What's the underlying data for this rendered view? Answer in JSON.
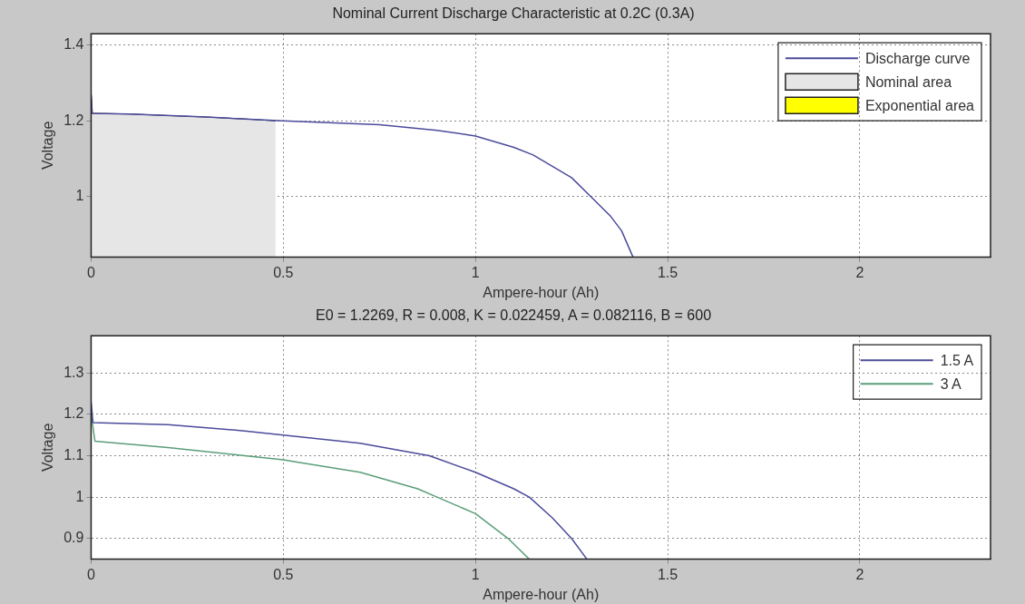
{
  "chart_data": [
    {
      "type": "line",
      "title": "Nominal Current Discharge Characteristic at 0.2C (0.3A)",
      "xlabel": "Ampere-hour (Ah)",
      "ylabel": "Voltage",
      "xlim": [
        0,
        2.34
      ],
      "ylim": [
        0.84,
        1.43
      ],
      "xticks": [
        0,
        0.5,
        1,
        1.5,
        2
      ],
      "yticks": [
        1,
        1.2,
        1.4
      ],
      "grid": true,
      "legend": "top right",
      "line_style": "solid",
      "series": [
        {
          "name": "Discharge curve",
          "color": "#4b4b9b",
          "x": [
            0,
            0.003,
            0.1,
            0.3,
            0.5,
            0.75,
            0.9,
            1.0,
            1.1,
            1.15,
            1.2,
            1.25,
            1.3,
            1.35,
            1.38,
            1.41
          ],
          "values": [
            1.27,
            1.22,
            1.218,
            1.21,
            1.2,
            1.19,
            1.175,
            1.16,
            1.13,
            1.11,
            1.08,
            1.05,
            1.0,
            0.95,
            0.91,
            0.84
          ]
        },
        {
          "name": "Nominal area",
          "type": "area",
          "color": "#e6e6e6",
          "x": [
            0,
            0.003,
            0.1,
            0.2,
            0.3,
            0.4,
            0.48
          ],
          "values": [
            1.27,
            1.22,
            1.218,
            1.214,
            1.21,
            1.205,
            1.2
          ]
        },
        {
          "name": "Exponential area",
          "type": "area",
          "color": "#ffff00"
        }
      ]
    },
    {
      "type": "line",
      "title": "E0 = 1.2269, R = 0.008, K = 0.022459, A = 0.082116, B = 600",
      "xlabel": "Ampere-hour (Ah)",
      "ylabel": "Voltage",
      "xlim": [
        0,
        2.34
      ],
      "ylim": [
        0.85,
        1.39
      ],
      "xticks": [
        0,
        0.5,
        1,
        1.5,
        2
      ],
      "yticks": [
        0.9,
        1,
        1.1,
        1.2,
        1.3
      ],
      "grid": true,
      "legend": "top right",
      "line_style": "solid",
      "series": [
        {
          "name": "1.5 A",
          "color": "#4b4b9b",
          "x": [
            0,
            0.005,
            0.2,
            0.4,
            0.5,
            0.7,
            0.88,
            1.0,
            1.1,
            1.14,
            1.2,
            1.25,
            1.29
          ],
          "values": [
            1.23,
            1.18,
            1.175,
            1.16,
            1.15,
            1.13,
            1.1,
            1.06,
            1.02,
            1.0,
            0.95,
            0.9,
            0.85
          ]
        },
        {
          "name": "3 A",
          "color": "#5a9e78",
          "x": [
            0,
            0.01,
            0.2,
            0.4,
            0.5,
            0.7,
            0.85,
            0.9,
            1.0,
            1.085,
            1.14
          ],
          "values": [
            1.2,
            1.135,
            1.12,
            1.1,
            1.09,
            1.06,
            1.02,
            1.0,
            0.96,
            0.9,
            0.85
          ]
        }
      ]
    }
  ]
}
